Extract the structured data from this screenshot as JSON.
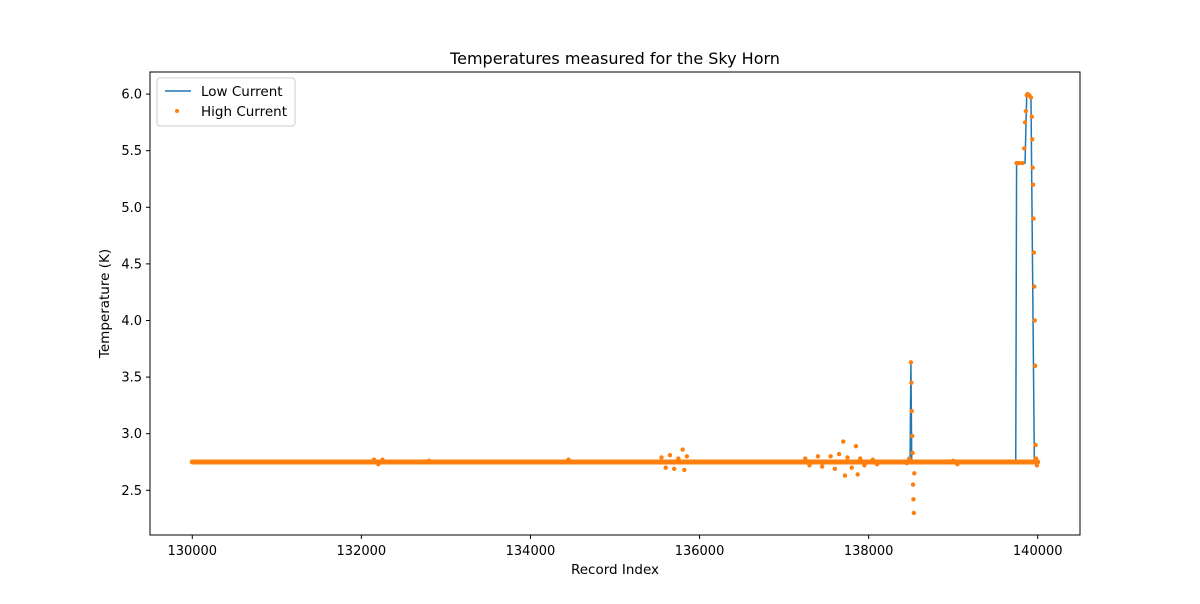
{
  "chart_data": {
    "type": "line",
    "title": "Temperatures measured for the Sky Horn",
    "xlabel": "Record Index",
    "ylabel": "Temperature (K)",
    "xlim": [
      129500,
      140500
    ],
    "ylim": [
      2.105,
      6.195
    ],
    "x_ticks": [
      130000,
      132000,
      134000,
      136000,
      138000,
      140000
    ],
    "y_ticks": [
      2.5,
      3.0,
      3.5,
      4.0,
      4.5,
      5.0,
      5.5,
      6.0
    ],
    "grid": false,
    "legend_position": "top-left",
    "colors": {
      "low_current": "#1f77b4",
      "high_current": "#ff7f0e"
    },
    "series": [
      {
        "name": "Low Current",
        "kind": "line",
        "points": [
          [
            130000,
            2.75
          ],
          [
            138490,
            2.75
          ],
          [
            138500,
            3.62
          ],
          [
            138510,
            2.75
          ],
          [
            139740,
            2.75
          ],
          [
            139750,
            5.39
          ],
          [
            139850,
            5.39
          ],
          [
            139870,
            6.0
          ],
          [
            139920,
            5.98
          ],
          [
            139960,
            2.75
          ],
          [
            140000,
            2.75
          ]
        ]
      },
      {
        "name": "High Current",
        "kind": "scatter",
        "base_value": 2.75,
        "base_range": [
          130000,
          140000
        ],
        "points": [
          [
            132150,
            2.77
          ],
          [
            132200,
            2.73
          ],
          [
            132250,
            2.77
          ],
          [
            132800,
            2.76
          ],
          [
            134450,
            2.77
          ],
          [
            135550,
            2.79
          ],
          [
            135600,
            2.7
          ],
          [
            135650,
            2.81
          ],
          [
            135700,
            2.69
          ],
          [
            135750,
            2.78
          ],
          [
            135800,
            2.86
          ],
          [
            135820,
            2.68
          ],
          [
            135850,
            2.8
          ],
          [
            137250,
            2.78
          ],
          [
            137300,
            2.72
          ],
          [
            137400,
            2.8
          ],
          [
            137450,
            2.71
          ],
          [
            137550,
            2.8
          ],
          [
            137600,
            2.69
          ],
          [
            137650,
            2.82
          ],
          [
            137700,
            2.93
          ],
          [
            137720,
            2.63
          ],
          [
            137750,
            2.79
          ],
          [
            137800,
            2.7
          ],
          [
            137850,
            2.89
          ],
          [
            137870,
            2.64
          ],
          [
            137900,
            2.78
          ],
          [
            137950,
            2.72
          ],
          [
            138050,
            2.77
          ],
          [
            138100,
            2.73
          ],
          [
            138450,
            2.74
          ],
          [
            138480,
            2.78
          ],
          [
            138500,
            3.63
          ],
          [
            138505,
            3.45
          ],
          [
            138510,
            3.2
          ],
          [
            138515,
            2.98
          ],
          [
            138520,
            2.83
          ],
          [
            138525,
            2.55
          ],
          [
            138530,
            2.42
          ],
          [
            138535,
            2.3
          ],
          [
            138540,
            2.65
          ],
          [
            139000,
            2.76
          ],
          [
            139050,
            2.73
          ],
          [
            139750,
            5.39
          ],
          [
            139780,
            5.39
          ],
          [
            139820,
            5.39
          ],
          [
            139840,
            5.52
          ],
          [
            139850,
            5.75
          ],
          [
            139860,
            5.85
          ],
          [
            139870,
            5.99
          ],
          [
            139880,
            6.0
          ],
          [
            139900,
            5.99
          ],
          [
            139920,
            5.97
          ],
          [
            139930,
            5.8
          ],
          [
            139935,
            5.6
          ],
          [
            139940,
            5.35
          ],
          [
            139945,
            5.2
          ],
          [
            139950,
            4.9
          ],
          [
            139955,
            4.6
          ],
          [
            139960,
            4.3
          ],
          [
            139965,
            4.0
          ],
          [
            139970,
            3.6
          ],
          [
            139975,
            2.9
          ],
          [
            139980,
            2.78
          ],
          [
            139990,
            2.72
          ],
          [
            140000,
            2.75
          ]
        ]
      }
    ]
  }
}
